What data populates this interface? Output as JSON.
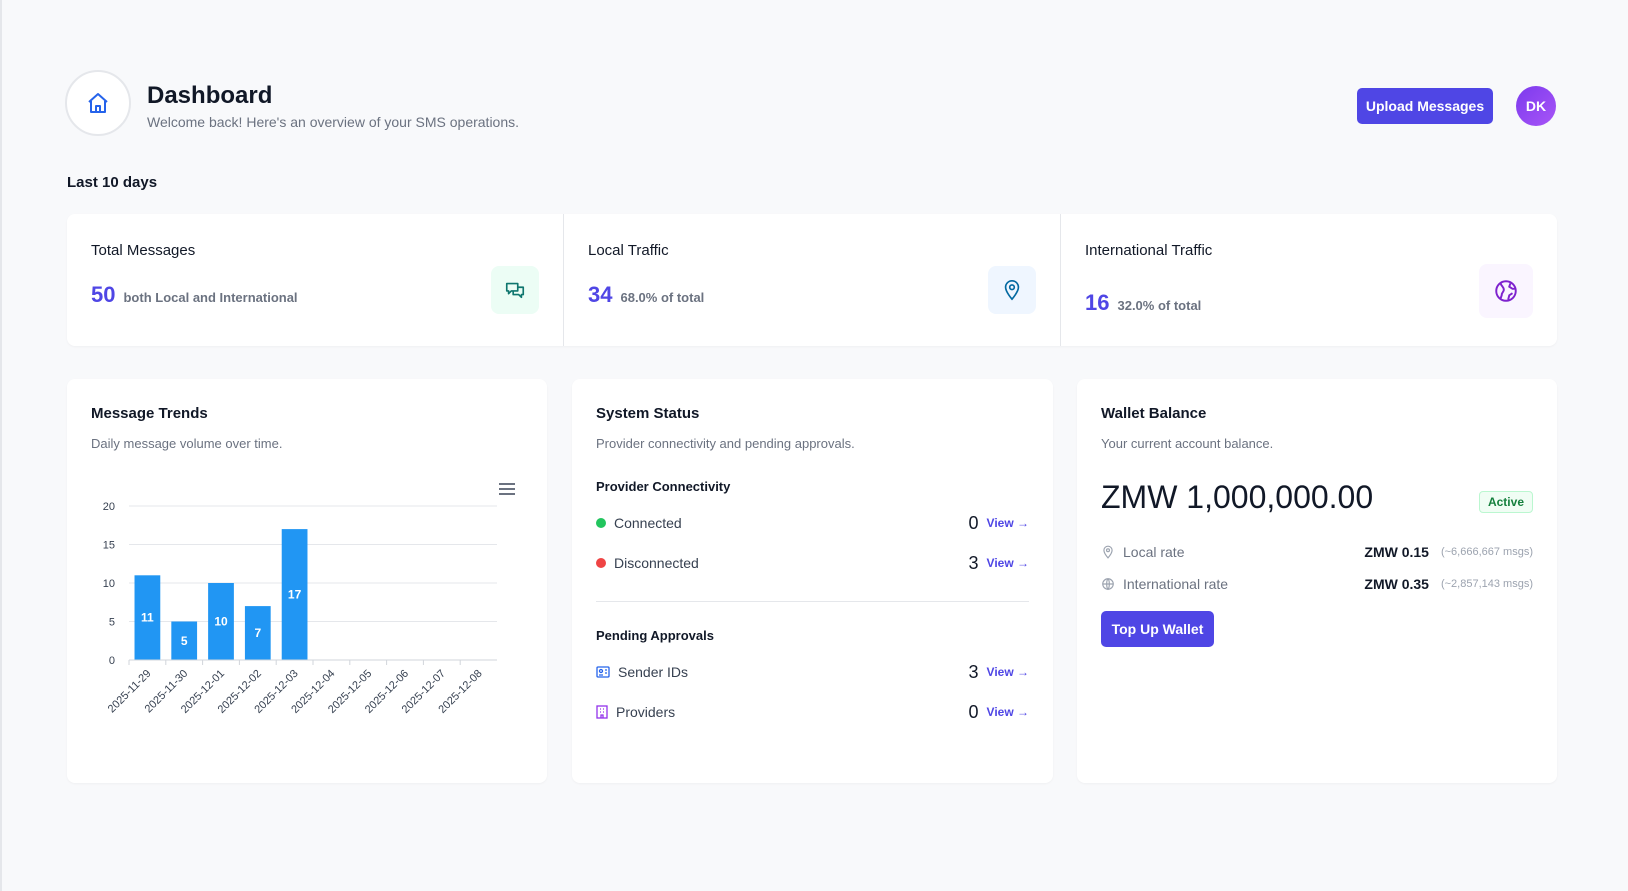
{
  "header": {
    "title": "Dashboard",
    "subtitle": "Welcome back! Here's an overview of your SMS operations.",
    "upload_label": "Upload Messages",
    "avatar_initials": "DK"
  },
  "period_label": "Last 10 days",
  "stats": [
    {
      "label": "Total Messages",
      "value": "50",
      "desc": "both Local and International",
      "icon": "chat-icon",
      "icon_color": "#0f766e",
      "icon_bg": "#ecfdf5"
    },
    {
      "label": "Local Traffic",
      "value": "34",
      "desc": "68.0% of total",
      "icon": "map-pin-icon",
      "icon_color": "#0369a1",
      "icon_bg": "#eff6ff"
    },
    {
      "label": "International Traffic",
      "value": "16",
      "desc": "32.0% of total",
      "icon": "globe-icon",
      "icon_color": "#7e22ce",
      "icon_bg": "#faf5ff"
    }
  ],
  "trends": {
    "title": "Message Trends",
    "subtitle": "Daily message volume over time."
  },
  "chart_data": {
    "type": "bar",
    "title": "Message Trends",
    "xlabel": "",
    "ylabel": "",
    "categories": [
      "2025-11-29",
      "2025-11-30",
      "2025-12-01",
      "2025-12-02",
      "2025-12-03",
      "2025-12-04",
      "2025-12-05",
      "2025-12-06",
      "2025-12-07",
      "2025-12-08"
    ],
    "values": [
      11,
      5,
      10,
      7,
      17,
      0,
      0,
      0,
      0,
      0
    ],
    "ylim": [
      0,
      20
    ],
    "yticks": [
      0,
      5,
      10,
      15,
      20
    ],
    "grid": true,
    "bar_color": "#2196f3",
    "data_labels": true
  },
  "system": {
    "title": "System Status",
    "subtitle": "Provider connectivity and pending approvals.",
    "connectivity_heading": "Provider Connectivity",
    "connectivity": [
      {
        "label": "Connected",
        "count": "0",
        "view": "View →",
        "color": "#22c55e"
      },
      {
        "label": "Disconnected",
        "count": "3",
        "view": "View →",
        "color": "#ef4444"
      }
    ],
    "approvals_heading": "Pending Approvals",
    "approvals": [
      {
        "label": "Sender IDs",
        "count": "3",
        "view": "View →"
      },
      {
        "label": "Providers",
        "count": "0",
        "view": "View →"
      }
    ]
  },
  "wallet": {
    "title": "Wallet Balance",
    "subtitle": "Your current account balance.",
    "balance": "ZMW 1,000,000.00",
    "status": "Active",
    "rates": [
      {
        "label": "Local rate",
        "value": "ZMW 0.15",
        "estimate": "(~6,666,667 msgs)"
      },
      {
        "label": "International rate",
        "value": "ZMW 0.35",
        "estimate": "(~2,857,143 msgs)"
      }
    ],
    "topup_label": "Top Up Wallet"
  }
}
